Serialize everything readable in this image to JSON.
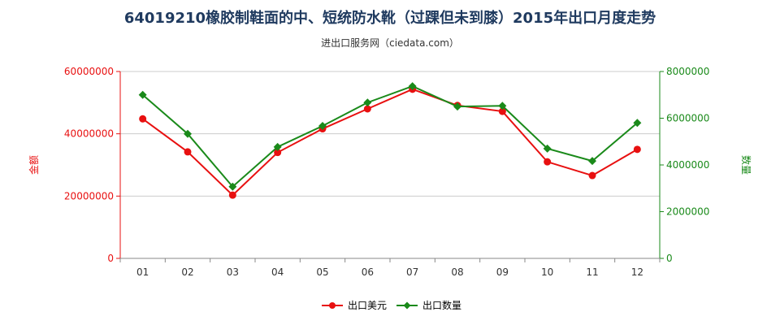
{
  "page": {
    "title": "64019210橡胶制鞋面的中、短统防水靴（过踝但未到膝）2015年出口月度走势",
    "subtitle": "进出口服务网（ciedata.com）"
  },
  "colors": {
    "series_value": "#e81010",
    "series_quantity": "#1a8a1a",
    "left_axis": "#e81010",
    "right_axis": "#1a8a1a",
    "grid": "#cccccc"
  },
  "chart_data": {
    "type": "line",
    "title": "64019210橡胶制鞋面的中、短统防水靴（过踝但未到膝）2015年出口月度走势",
    "subtitle": "进出口服务网（ciedata.com）",
    "categories": [
      "01",
      "02",
      "03",
      "04",
      "05",
      "06",
      "07",
      "08",
      "09",
      "10",
      "11",
      "12"
    ],
    "y_left": {
      "label": "金额",
      "ylim": [
        0,
        60000000
      ],
      "ticks": [
        0,
        20000000,
        40000000,
        60000000
      ],
      "tick_labels": [
        "0",
        "20000000",
        "40000000",
        "60000000"
      ]
    },
    "y_right": {
      "label": "数量",
      "ylim": [
        0,
        8000000
      ],
      "ticks": [
        0,
        2000000,
        4000000,
        6000000,
        8000000
      ],
      "tick_labels": [
        "0",
        "2000000",
        "4000000",
        "6000000",
        "8000000"
      ]
    },
    "series": [
      {
        "name": "出口美元",
        "axis": "left",
        "values": [
          44800000,
          34200000,
          20300000,
          34000000,
          41600000,
          48000000,
          54300000,
          49100000,
          47200000,
          31000000,
          26600000,
          35000000
        ]
      },
      {
        "name": "出口数量",
        "axis": "right",
        "values": [
          7000000,
          5330000,
          3070000,
          4770000,
          5670000,
          6670000,
          7370000,
          6500000,
          6530000,
          4700000,
          4170000,
          5800000
        ]
      }
    ],
    "grid": "horizontal",
    "legend_position": "bottom"
  }
}
